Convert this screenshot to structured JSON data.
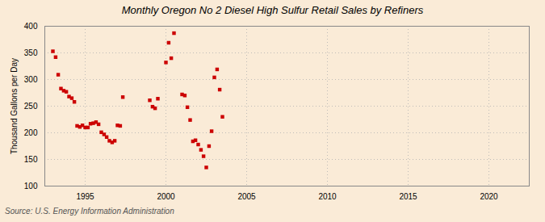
{
  "chart_data": {
    "type": "scatter",
    "title": "Monthly Oregon No 2 Diesel High Sulfur Retail Sales by Refiners",
    "ylabel": "Thousand Gallons per Day",
    "source": "Source: U.S. Energy Information Administration",
    "color": "#cc0000",
    "marker": "square",
    "grid": true,
    "xlim": [
      1992.5,
      2022.5
    ],
    "ylim": [
      100,
      400
    ],
    "xticks": [
      1995,
      2000,
      2005,
      2010,
      2015,
      2020
    ],
    "yticks": [
      100,
      150,
      200,
      250,
      300,
      350,
      400
    ],
    "x": [
      1993.0,
      1993.17,
      1993.33,
      1993.5,
      1993.67,
      1993.83,
      1994.0,
      1994.17,
      1994.33,
      1994.5,
      1994.67,
      1994.83,
      1995.0,
      1995.17,
      1995.33,
      1995.5,
      1995.67,
      1995.83,
      1996.0,
      1996.17,
      1996.33,
      1996.5,
      1996.67,
      1996.83,
      1997.0,
      1997.17,
      1997.33,
      1999.0,
      1999.17,
      1999.33,
      1999.5,
      2000.0,
      2000.17,
      2000.33,
      2000.5,
      2001.0,
      2001.17,
      2001.33,
      2001.5,
      2001.67,
      2001.83,
      2002.0,
      2002.17,
      2002.33,
      2002.5,
      2002.67,
      2002.83,
      2003.0,
      2003.17,
      2003.33,
      2003.5
    ],
    "values": [
      353,
      342,
      309,
      283,
      279,
      277,
      268,
      265,
      258,
      213,
      211,
      214,
      210,
      210,
      217,
      218,
      220,
      216,
      201,
      197,
      192,
      185,
      182,
      185,
      214,
      213,
      267,
      261,
      249,
      246,
      264,
      332,
      369,
      340,
      387,
      272,
      270,
      248,
      224,
      184,
      186,
      178,
      168,
      156,
      135,
      175,
      203,
      304,
      319,
      281,
      230
    ]
  }
}
